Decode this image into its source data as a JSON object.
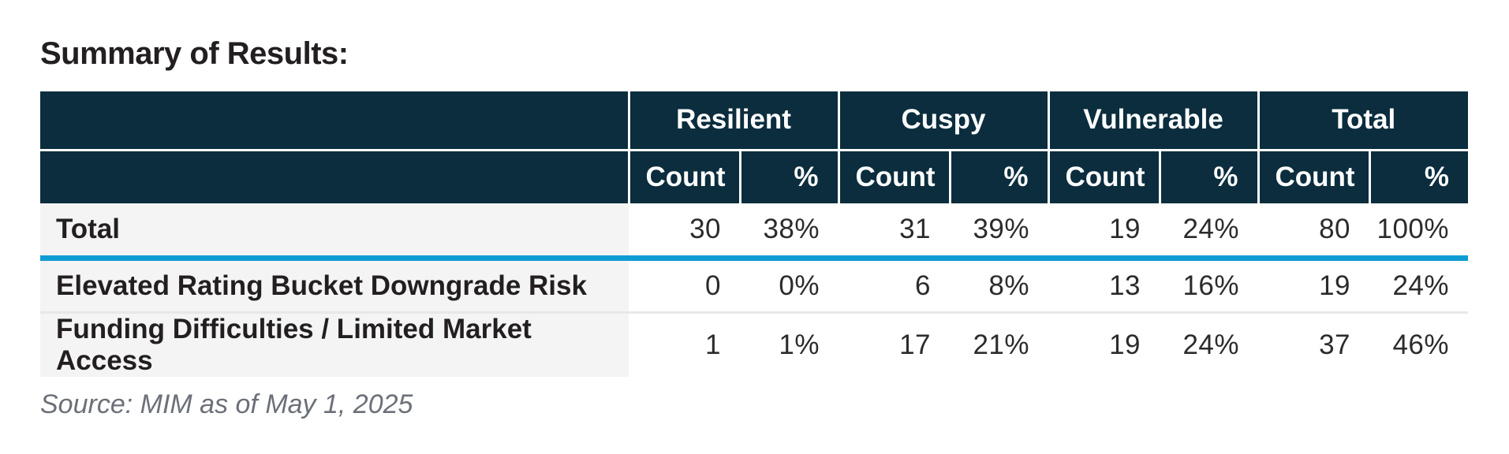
{
  "title": "Summary of Results:",
  "source_note": "Source: MIM as of May 1, 2025",
  "colors": {
    "header_bg": "#0b2d3e",
    "header_text": "#ffffff",
    "accent_blue_rule": "#0f9cd3",
    "label_column_bg": "#f4f4f5",
    "row_divider": "#e8e8e9",
    "title_text": "#231f20",
    "body_text": "#2b2b2b",
    "source_text": "#6b7078"
  },
  "table": {
    "groups": [
      {
        "label": "Resilient"
      },
      {
        "label": "Cuspy"
      },
      {
        "label": "Vulnerable"
      },
      {
        "label": "Total"
      }
    ],
    "subheader": {
      "count": "Count",
      "percent": "%"
    },
    "rows": [
      {
        "label": "Total",
        "values": [
          "30",
          "38%",
          "31",
          "39%",
          "19",
          "24%",
          "80",
          "100%"
        ]
      },
      {
        "label": "Elevated Rating Bucket Downgrade Risk",
        "values": [
          "0",
          "0%",
          "6",
          "8%",
          "13",
          "16%",
          "19",
          "24%"
        ]
      },
      {
        "label": "Funding Difficulties / Limited Market Access",
        "values": [
          "1",
          "1%",
          "17",
          "21%",
          "19",
          "24%",
          "37",
          "46%"
        ]
      }
    ]
  }
}
